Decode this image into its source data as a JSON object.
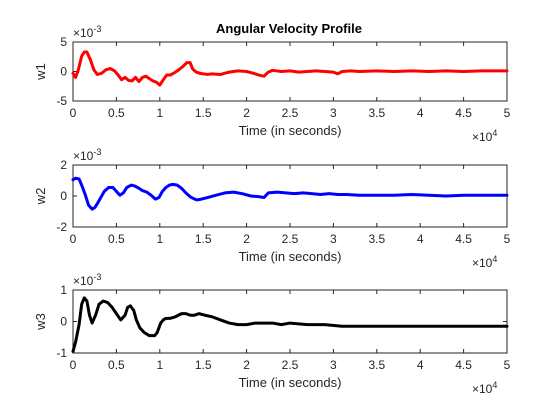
{
  "figure": {
    "title": "Angular Velocity Profile"
  },
  "chart_data": [
    {
      "type": "line",
      "title": "Angular Velocity Profile",
      "xlabel": "Time (in seconds)",
      "ylabel": "w1",
      "x_multiplier": "×10",
      "x_multiplier_exp": "4",
      "y_multiplier": "×10",
      "y_multiplier_exp": "-3",
      "xlim": [
        0,
        5
      ],
      "ylim": [
        -5,
        5
      ],
      "xticks": [
        0,
        0.5,
        1,
        1.5,
        2,
        2.5,
        3,
        3.5,
        4,
        4.5,
        5
      ],
      "yticks": [
        -5,
        0,
        5
      ],
      "grid": false,
      "series": [
        {
          "color": "#ff0000",
          "x": [
            0,
            0.03,
            0.06,
            0.1,
            0.13,
            0.16,
            0.2,
            0.24,
            0.28,
            0.33,
            0.38,
            0.43,
            0.48,
            0.52,
            0.56,
            0.6,
            0.64,
            0.68,
            0.72,
            0.76,
            0.8,
            0.84,
            0.88,
            0.92,
            0.96,
            1.0,
            1.04,
            1.08,
            1.12,
            1.17,
            1.22,
            1.27,
            1.31,
            1.35,
            1.38,
            1.42,
            1.46,
            1.5,
            1.55,
            1.6,
            1.7,
            1.8,
            1.9,
            2.0,
            2.08,
            2.14,
            2.2,
            2.25,
            2.3,
            2.4,
            2.5,
            2.6,
            2.7,
            2.8,
            2.9,
            3.0,
            3.05,
            3.1,
            3.2,
            3.3,
            3.5,
            3.7,
            3.9,
            4.1,
            4.3,
            4.5,
            4.7,
            5.0
          ],
          "y": [
            -0.3,
            -1.0,
            0.2,
            2.6,
            3.3,
            3.3,
            2.0,
            0.3,
            -0.5,
            -0.3,
            0.3,
            0.5,
            0.1,
            -0.6,
            -1.4,
            -1.0,
            -1.5,
            -1.6,
            -1.0,
            -1.7,
            -1.0,
            -0.8,
            -1.2,
            -1.6,
            -1.8,
            -2.3,
            -1.4,
            -0.6,
            -0.6,
            -0.2,
            0.3,
            0.9,
            1.5,
            1.5,
            0.4,
            -0.1,
            -0.3,
            -0.4,
            -0.5,
            -0.4,
            -0.5,
            -0.1,
            0.1,
            0.0,
            -0.3,
            -0.6,
            -0.8,
            -0.1,
            0.2,
            0.0,
            0.1,
            -0.1,
            0.0,
            0.1,
            0.0,
            -0.1,
            -0.4,
            0.0,
            0.1,
            0.0,
            0.1,
            0.0,
            0.1,
            0.0,
            0.1,
            0.0,
            0.1,
            0.1
          ]
        }
      ]
    },
    {
      "type": "line",
      "title": "",
      "xlabel": "Time (in seconds)",
      "ylabel": "w2",
      "x_multiplier": "×10",
      "x_multiplier_exp": "4",
      "y_multiplier": "×10",
      "y_multiplier_exp": "-3",
      "xlim": [
        0,
        5
      ],
      "ylim": [
        -2,
        2
      ],
      "xticks": [
        0,
        0.5,
        1,
        1.5,
        2,
        2.5,
        3,
        3.5,
        4,
        4.5,
        5
      ],
      "yticks": [
        -2,
        0,
        2
      ],
      "grid": false,
      "series": [
        {
          "color": "#0000ff",
          "x": [
            0,
            0.03,
            0.07,
            0.1,
            0.14,
            0.18,
            0.22,
            0.25,
            0.28,
            0.32,
            0.36,
            0.41,
            0.46,
            0.5,
            0.54,
            0.58,
            0.62,
            0.67,
            0.71,
            0.76,
            0.8,
            0.85,
            0.9,
            0.95,
            0.99,
            1.03,
            1.07,
            1.11,
            1.15,
            1.2,
            1.25,
            1.3,
            1.35,
            1.4,
            1.43,
            1.48,
            1.55,
            1.65,
            1.75,
            1.85,
            1.95,
            2.05,
            2.15,
            2.2,
            2.25,
            2.35,
            2.45,
            2.55,
            2.65,
            2.75,
            2.85,
            2.95,
            3.05,
            3.15,
            3.3,
            3.5,
            3.7,
            3.9,
            4.1,
            4.3,
            4.5,
            4.7,
            5.0
          ],
          "y": [
            1.05,
            1.15,
            1.1,
            0.7,
            0.1,
            -0.6,
            -0.85,
            -0.75,
            -0.5,
            -0.1,
            0.3,
            0.55,
            0.55,
            0.3,
            0.05,
            0.2,
            0.55,
            0.7,
            0.65,
            0.5,
            0.35,
            0.25,
            0.05,
            -0.2,
            -0.1,
            0.3,
            0.55,
            0.7,
            0.75,
            0.7,
            0.5,
            0.2,
            -0.05,
            -0.2,
            -0.25,
            -0.2,
            -0.1,
            0.05,
            0.2,
            0.25,
            0.15,
            0.0,
            -0.05,
            -0.1,
            0.2,
            0.25,
            0.2,
            0.15,
            0.2,
            0.15,
            0.1,
            0.15,
            0.1,
            0.1,
            0.05,
            0.05,
            0.05,
            0.1,
            0.05,
            0.0,
            0.05,
            0.05,
            0.05
          ]
        }
      ]
    },
    {
      "type": "line",
      "title": "",
      "xlabel": "Time (in seconds)",
      "ylabel": "w3",
      "x_multiplier": "×10",
      "x_multiplier_exp": "4",
      "y_multiplier": "×10",
      "y_multiplier_exp": "-3",
      "xlim": [
        0,
        5
      ],
      "ylim": [
        -1,
        1
      ],
      "xticks": [
        0,
        0.5,
        1,
        1.5,
        2,
        2.5,
        3,
        3.5,
        4,
        4.5,
        5
      ],
      "yticks": [
        -1,
        0,
        1
      ],
      "grid": false,
      "series": [
        {
          "color": "#000000",
          "x": [
            0,
            0.03,
            0.07,
            0.1,
            0.13,
            0.16,
            0.19,
            0.22,
            0.26,
            0.3,
            0.35,
            0.4,
            0.45,
            0.5,
            0.55,
            0.6,
            0.63,
            0.66,
            0.7,
            0.73,
            0.77,
            0.82,
            0.88,
            0.94,
            0.97,
            1.01,
            1.04,
            1.07,
            1.12,
            1.18,
            1.25,
            1.3,
            1.35,
            1.4,
            1.45,
            1.52,
            1.6,
            1.7,
            1.8,
            1.9,
            2.0,
            2.1,
            2.2,
            2.3,
            2.4,
            2.5,
            2.7,
            2.9,
            3.1,
            3.3,
            3.5,
            3.7,
            3.9,
            4.1,
            4.3,
            4.5,
            4.7,
            5.0
          ],
          "y": [
            -0.95,
            -0.65,
            -0.1,
            0.55,
            0.75,
            0.65,
            0.2,
            -0.05,
            0.2,
            0.55,
            0.65,
            0.6,
            0.45,
            0.25,
            0.05,
            0.2,
            0.45,
            0.5,
            0.35,
            0.05,
            -0.2,
            -0.35,
            -0.45,
            -0.45,
            -0.35,
            -0.05,
            0.05,
            0.1,
            0.1,
            0.15,
            0.25,
            0.25,
            0.2,
            0.2,
            0.25,
            0.2,
            0.15,
            0.05,
            -0.05,
            -0.1,
            -0.1,
            -0.05,
            -0.05,
            -0.05,
            -0.1,
            -0.05,
            -0.1,
            -0.1,
            -0.15,
            -0.15,
            -0.15,
            -0.15,
            -0.15,
            -0.15,
            -0.15,
            -0.15,
            -0.15,
            -0.15
          ]
        }
      ]
    }
  ]
}
